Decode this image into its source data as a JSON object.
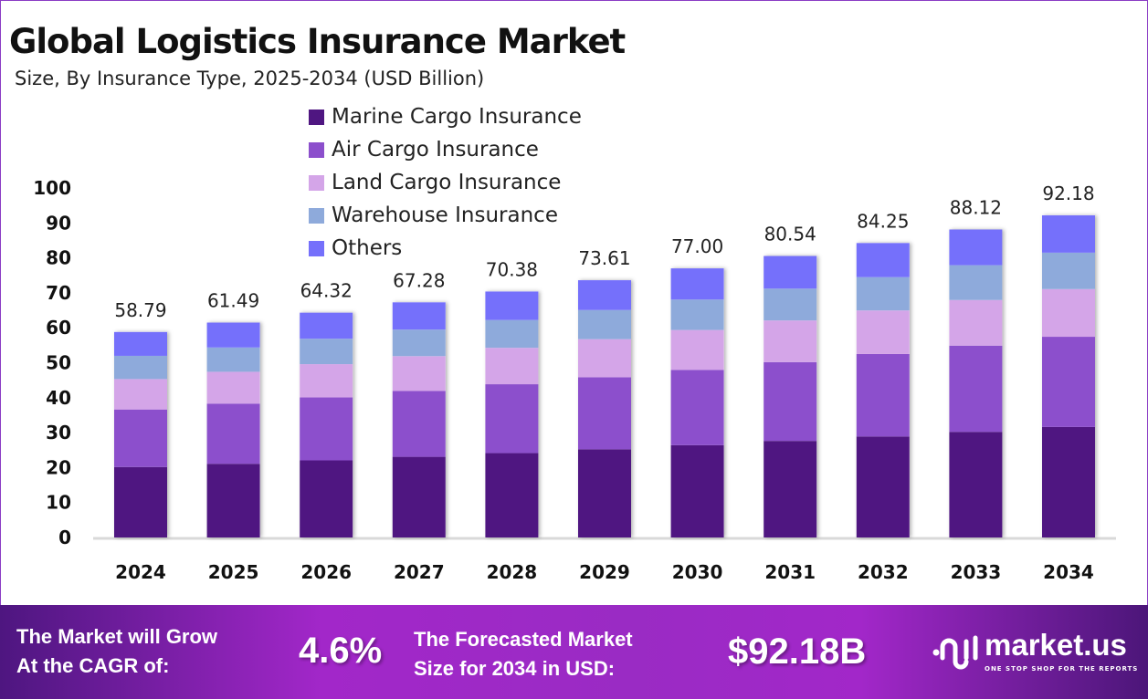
{
  "chart_data": {
    "type": "bar",
    "stacked": true,
    "title": "Global Logistics Insurance Market",
    "subtitle": "Size, By Insurance Type, 2025-2034 (USD Billion)",
    "xlabel": "",
    "ylabel": "",
    "ylim": [
      0,
      100
    ],
    "yticks": [
      0,
      10,
      20,
      30,
      40,
      50,
      60,
      70,
      80,
      90,
      100
    ],
    "grid": false,
    "legend_position": "top-center",
    "categories": [
      "2024",
      "2025",
      "2026",
      "2027",
      "2028",
      "2029",
      "2030",
      "2031",
      "2032",
      "2033",
      "2034"
    ],
    "totals": [
      "58.79",
      "61.49",
      "64.32",
      "67.28",
      "70.38",
      "73.61",
      "77.00",
      "80.54",
      "84.25",
      "88.12",
      "92.18"
    ],
    "series": [
      {
        "name": "Marine Cargo Insurance",
        "color": "#4f1681",
        "values": [
          20.17,
          21.09,
          22.06,
          23.08,
          24.14,
          25.25,
          26.41,
          27.63,
          28.9,
          30.23,
          31.62
        ]
      },
      {
        "name": "Air Cargo Insurance",
        "color": "#8c4fcc",
        "values": [
          16.46,
          17.22,
          18.01,
          18.84,
          19.71,
          20.61,
          21.56,
          22.55,
          23.59,
          24.67,
          25.81
        ]
      },
      {
        "name": "Land Cargo Insurance",
        "color": "#d4a5e8",
        "values": [
          8.7,
          9.1,
          9.52,
          9.96,
          10.42,
          10.89,
          11.4,
          11.92,
          12.47,
          13.04,
          13.64
        ]
      },
      {
        "name": "Warehouse Insurance",
        "color": "#8eaadb",
        "values": [
          6.64,
          6.95,
          7.27,
          7.6,
          7.95,
          8.32,
          8.7,
          9.1,
          9.52,
          9.96,
          10.42
        ]
      },
      {
        "name": "Others",
        "color": "#7570fb",
        "values": [
          6.82,
          7.13,
          7.46,
          7.8,
          8.16,
          8.54,
          8.93,
          9.34,
          9.77,
          10.22,
          10.69
        ]
      }
    ]
  },
  "footer": {
    "cagr_label_1": "The Market will Grow",
    "cagr_label_2": "At the CAGR of:",
    "cagr_value": "4.6%",
    "size_label_1": "The Forecasted Market",
    "size_label_2": "Size for 2034 in USD:",
    "size_value": "$92.18B",
    "logo_name": "market.us",
    "logo_tagline": "ONE STOP SHOP FOR THE REPORTS"
  }
}
